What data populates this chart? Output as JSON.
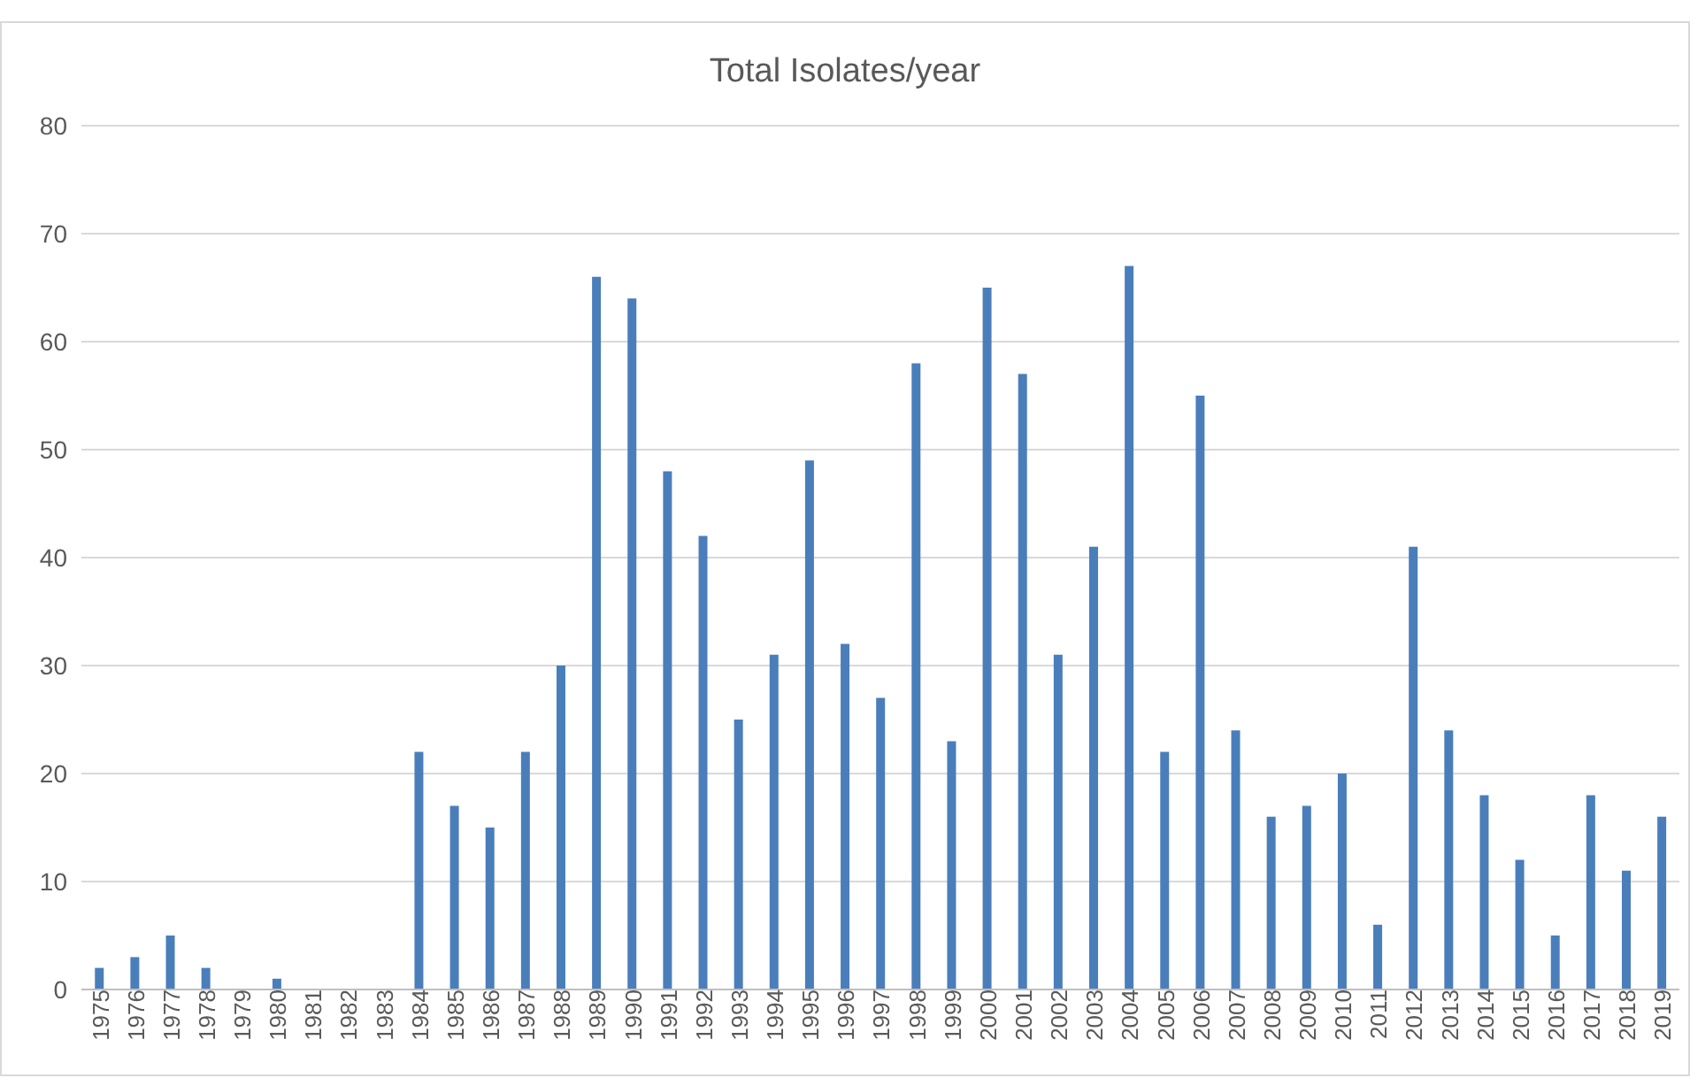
{
  "chart_data": {
    "type": "bar",
    "title": "Total Isolates/year",
    "categories": [
      "1975",
      "1976",
      "1977",
      "1978",
      "1979",
      "1980",
      "1981",
      "1982",
      "1983",
      "1984",
      "1985",
      "1986",
      "1987",
      "1988",
      "1989",
      "1990",
      "1991",
      "1992",
      "1993",
      "1994",
      "1995",
      "1996",
      "1997",
      "1998",
      "1999",
      "2000",
      "2001",
      "2002",
      "2003",
      "2004",
      "2005",
      "2006",
      "2007",
      "2008",
      "2009",
      "2010",
      "2011",
      "2012",
      "2013",
      "2014",
      "2015",
      "2016",
      "2017",
      "2018",
      "2019"
    ],
    "values": [
      2,
      3,
      5,
      2,
      0,
      1,
      0,
      0,
      0,
      22,
      17,
      15,
      22,
      30,
      66,
      64,
      48,
      42,
      25,
      31,
      49,
      32,
      27,
      58,
      23,
      65,
      57,
      31,
      41,
      67,
      22,
      55,
      24,
      16,
      17,
      20,
      6,
      41,
      24,
      18,
      12,
      5,
      18,
      11,
      16
    ],
    "color": "#4a7ebb",
    "ylim": [
      0,
      80
    ],
    "yticks": [
      0,
      10,
      20,
      30,
      40,
      50,
      60,
      70,
      80
    ],
    "grid": "y"
  }
}
